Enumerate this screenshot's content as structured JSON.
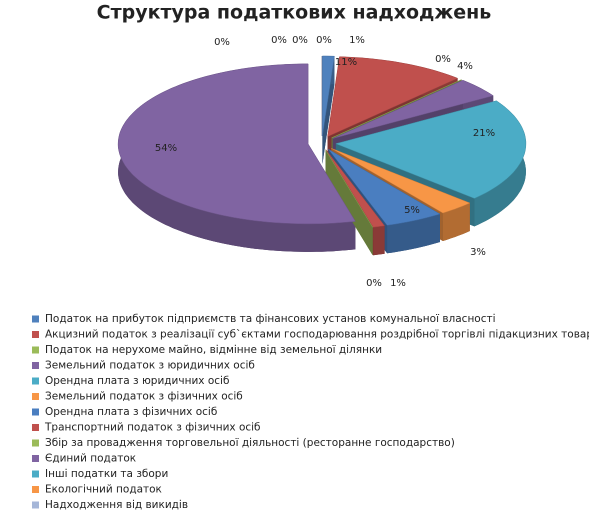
{
  "chart_data": {
    "type": "pie3d",
    "title": "Структура податкових надходжень",
    "categories": [
      "Податок на прибуток підприємств та фінансових установ комунальної власності",
      "Акцизний податок з реалізації суб`єктами господарювання роздрібної торгівлі підакцизних товарів",
      "Податок на нерухоме майно, відмінне від земельної ділянки",
      "Земельний податок з юридичних осіб",
      "Орендна плата з юридичних осіб",
      "Земельний податок з фізичних осіб",
      "Орендна плата з фізичних осіб",
      "Транспортний податок з фізичних осіб",
      "Збір за провадження торговельної діяльності (ресторанне господарство)",
      "Єдиний податок",
      "Інші податки та збори",
      "Екологічний податок",
      "Надходження від викидів",
      null
    ],
    "values": [
      1,
      11,
      0,
      4,
      21,
      3,
      5,
      1,
      0,
      54,
      0,
      0,
      0,
      0
    ],
    "value_labels": [
      "1%",
      "11%",
      "0%",
      "4%",
      "21%",
      "3%",
      "5%",
      "1%",
      "0%",
      "54%",
      "0%",
      "0%",
      "0%",
      "0%"
    ],
    "colors": [
      "#4F81BD",
      "#C0504D",
      "#9BBB59",
      "#8064A2",
      "#4BACC6",
      "#F79646",
      "#4A7EC0",
      "#C0504D",
      "#9BBB59",
      "#8064A2",
      "#4BACC6",
      "#F79646",
      "#A5B6D8",
      "#B0B0C8"
    ]
  }
}
